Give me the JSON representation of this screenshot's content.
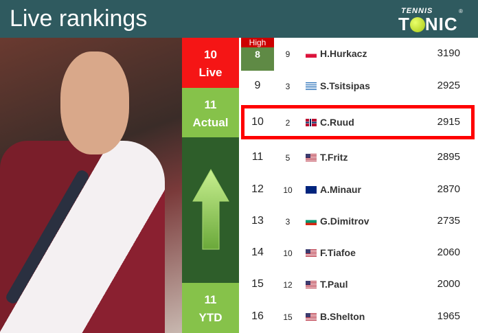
{
  "header": {
    "title": "Live rankings",
    "logo_top": "TENNIS",
    "logo_bottom_left": "T",
    "logo_bottom_right": "NIC"
  },
  "side": {
    "live_rank": "10",
    "live_label": "Live",
    "actual_rank": "11",
    "actual_label": "Actual",
    "ytd_rank": "11",
    "ytd_label": "YTD",
    "trend": "up-arrow-icon"
  },
  "high": {
    "label": "High",
    "value": "8"
  },
  "rows": [
    {
      "rank": "",
      "prev": "9",
      "flag": "poland",
      "name": "H.Hurkacz",
      "points": "3190"
    },
    {
      "rank": "9",
      "prev": "3",
      "flag": "greece",
      "name": "S.Tsitsipas",
      "points": "2925"
    },
    {
      "rank": "10",
      "prev": "2",
      "flag": "norway",
      "name": "C.Ruud",
      "points": "2915"
    },
    {
      "rank": "11",
      "prev": "5",
      "flag": "usa",
      "name": "T.Fritz",
      "points": "2895"
    },
    {
      "rank": "12",
      "prev": "10",
      "flag": "australia",
      "name": "A.Minaur",
      "points": "2870"
    },
    {
      "rank": "13",
      "prev": "3",
      "flag": "bulgaria",
      "name": "G.Dimitrov",
      "points": "2735"
    },
    {
      "rank": "14",
      "prev": "10",
      "flag": "usa",
      "name": "F.Tiafoe",
      "points": "2060"
    },
    {
      "rank": "15",
      "prev": "12",
      "flag": "usa",
      "name": "T.Paul",
      "points": "2000"
    },
    {
      "rank": "16",
      "prev": "15",
      "flag": "usa",
      "name": "B.Shelton",
      "points": "1965"
    }
  ],
  "colors": {
    "header": "#2f5a5f",
    "live": "#f51515",
    "actual": "#86c24a",
    "highlight": "#ff0000"
  }
}
